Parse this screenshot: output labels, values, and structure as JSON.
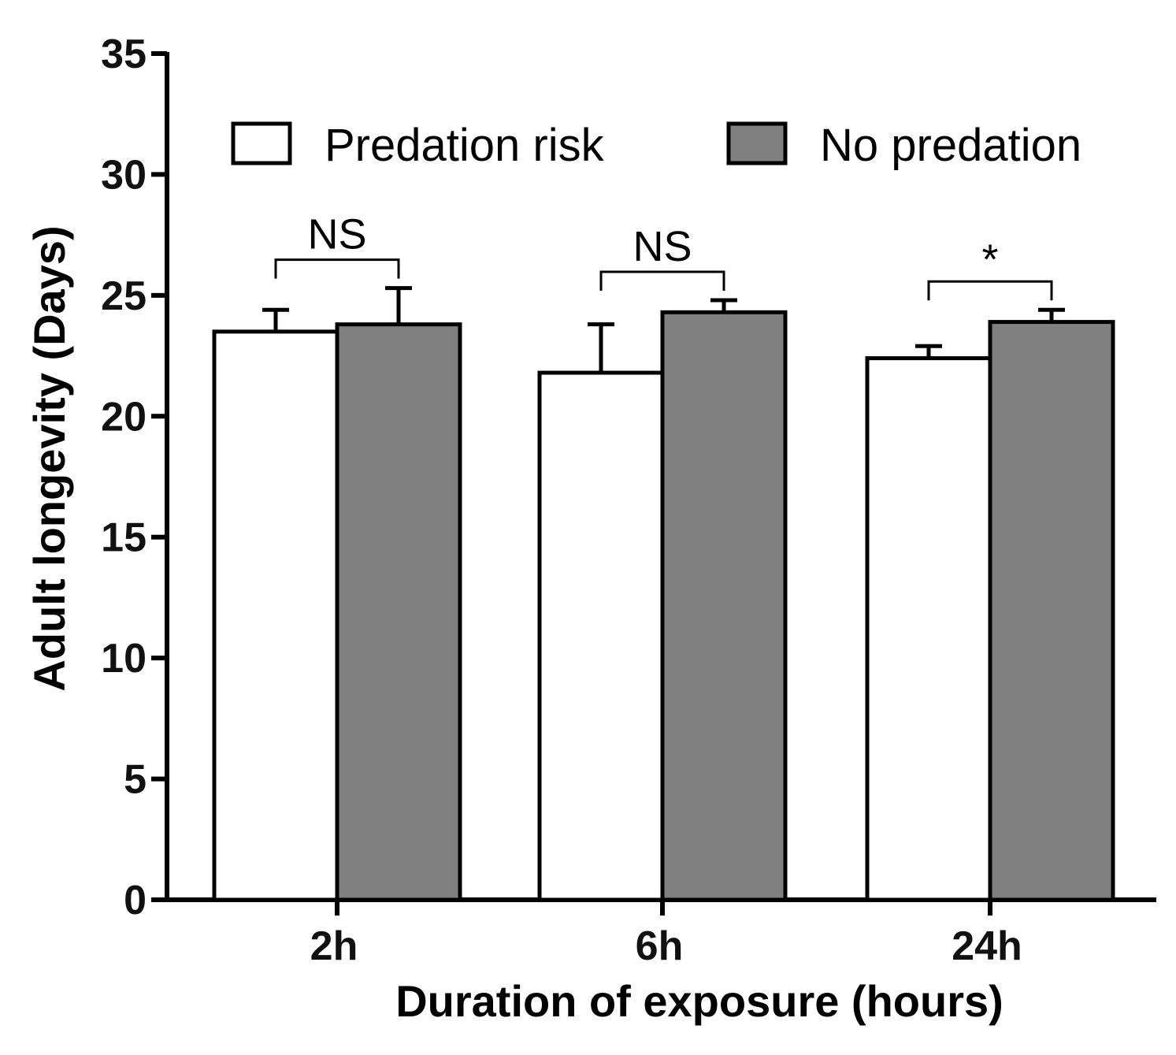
{
  "chart_data": {
    "type": "bar",
    "title": "",
    "xlabel": "Duration of exposure (hours)",
    "ylabel": "Adult longevity (Days)",
    "ylim": [
      0,
      35
    ],
    "yticks": [
      "0",
      "5",
      "10",
      "15",
      "20",
      "25",
      "30",
      "35"
    ],
    "categories": [
      "2h",
      "6h",
      "24h"
    ],
    "series": [
      {
        "name": "Predation risk",
        "color": "#ffffff",
        "values": [
          23.5,
          21.8,
          22.4
        ],
        "errors": [
          0.9,
          2.0,
          0.5
        ]
      },
      {
        "name": "No predation",
        "color": "#808080",
        "values": [
          23.8,
          24.3,
          23.9
        ],
        "errors": [
          1.5,
          0.5,
          0.5
        ]
      }
    ],
    "significance": [
      "NS",
      "NS",
      "*"
    ],
    "legend_position": "top"
  }
}
